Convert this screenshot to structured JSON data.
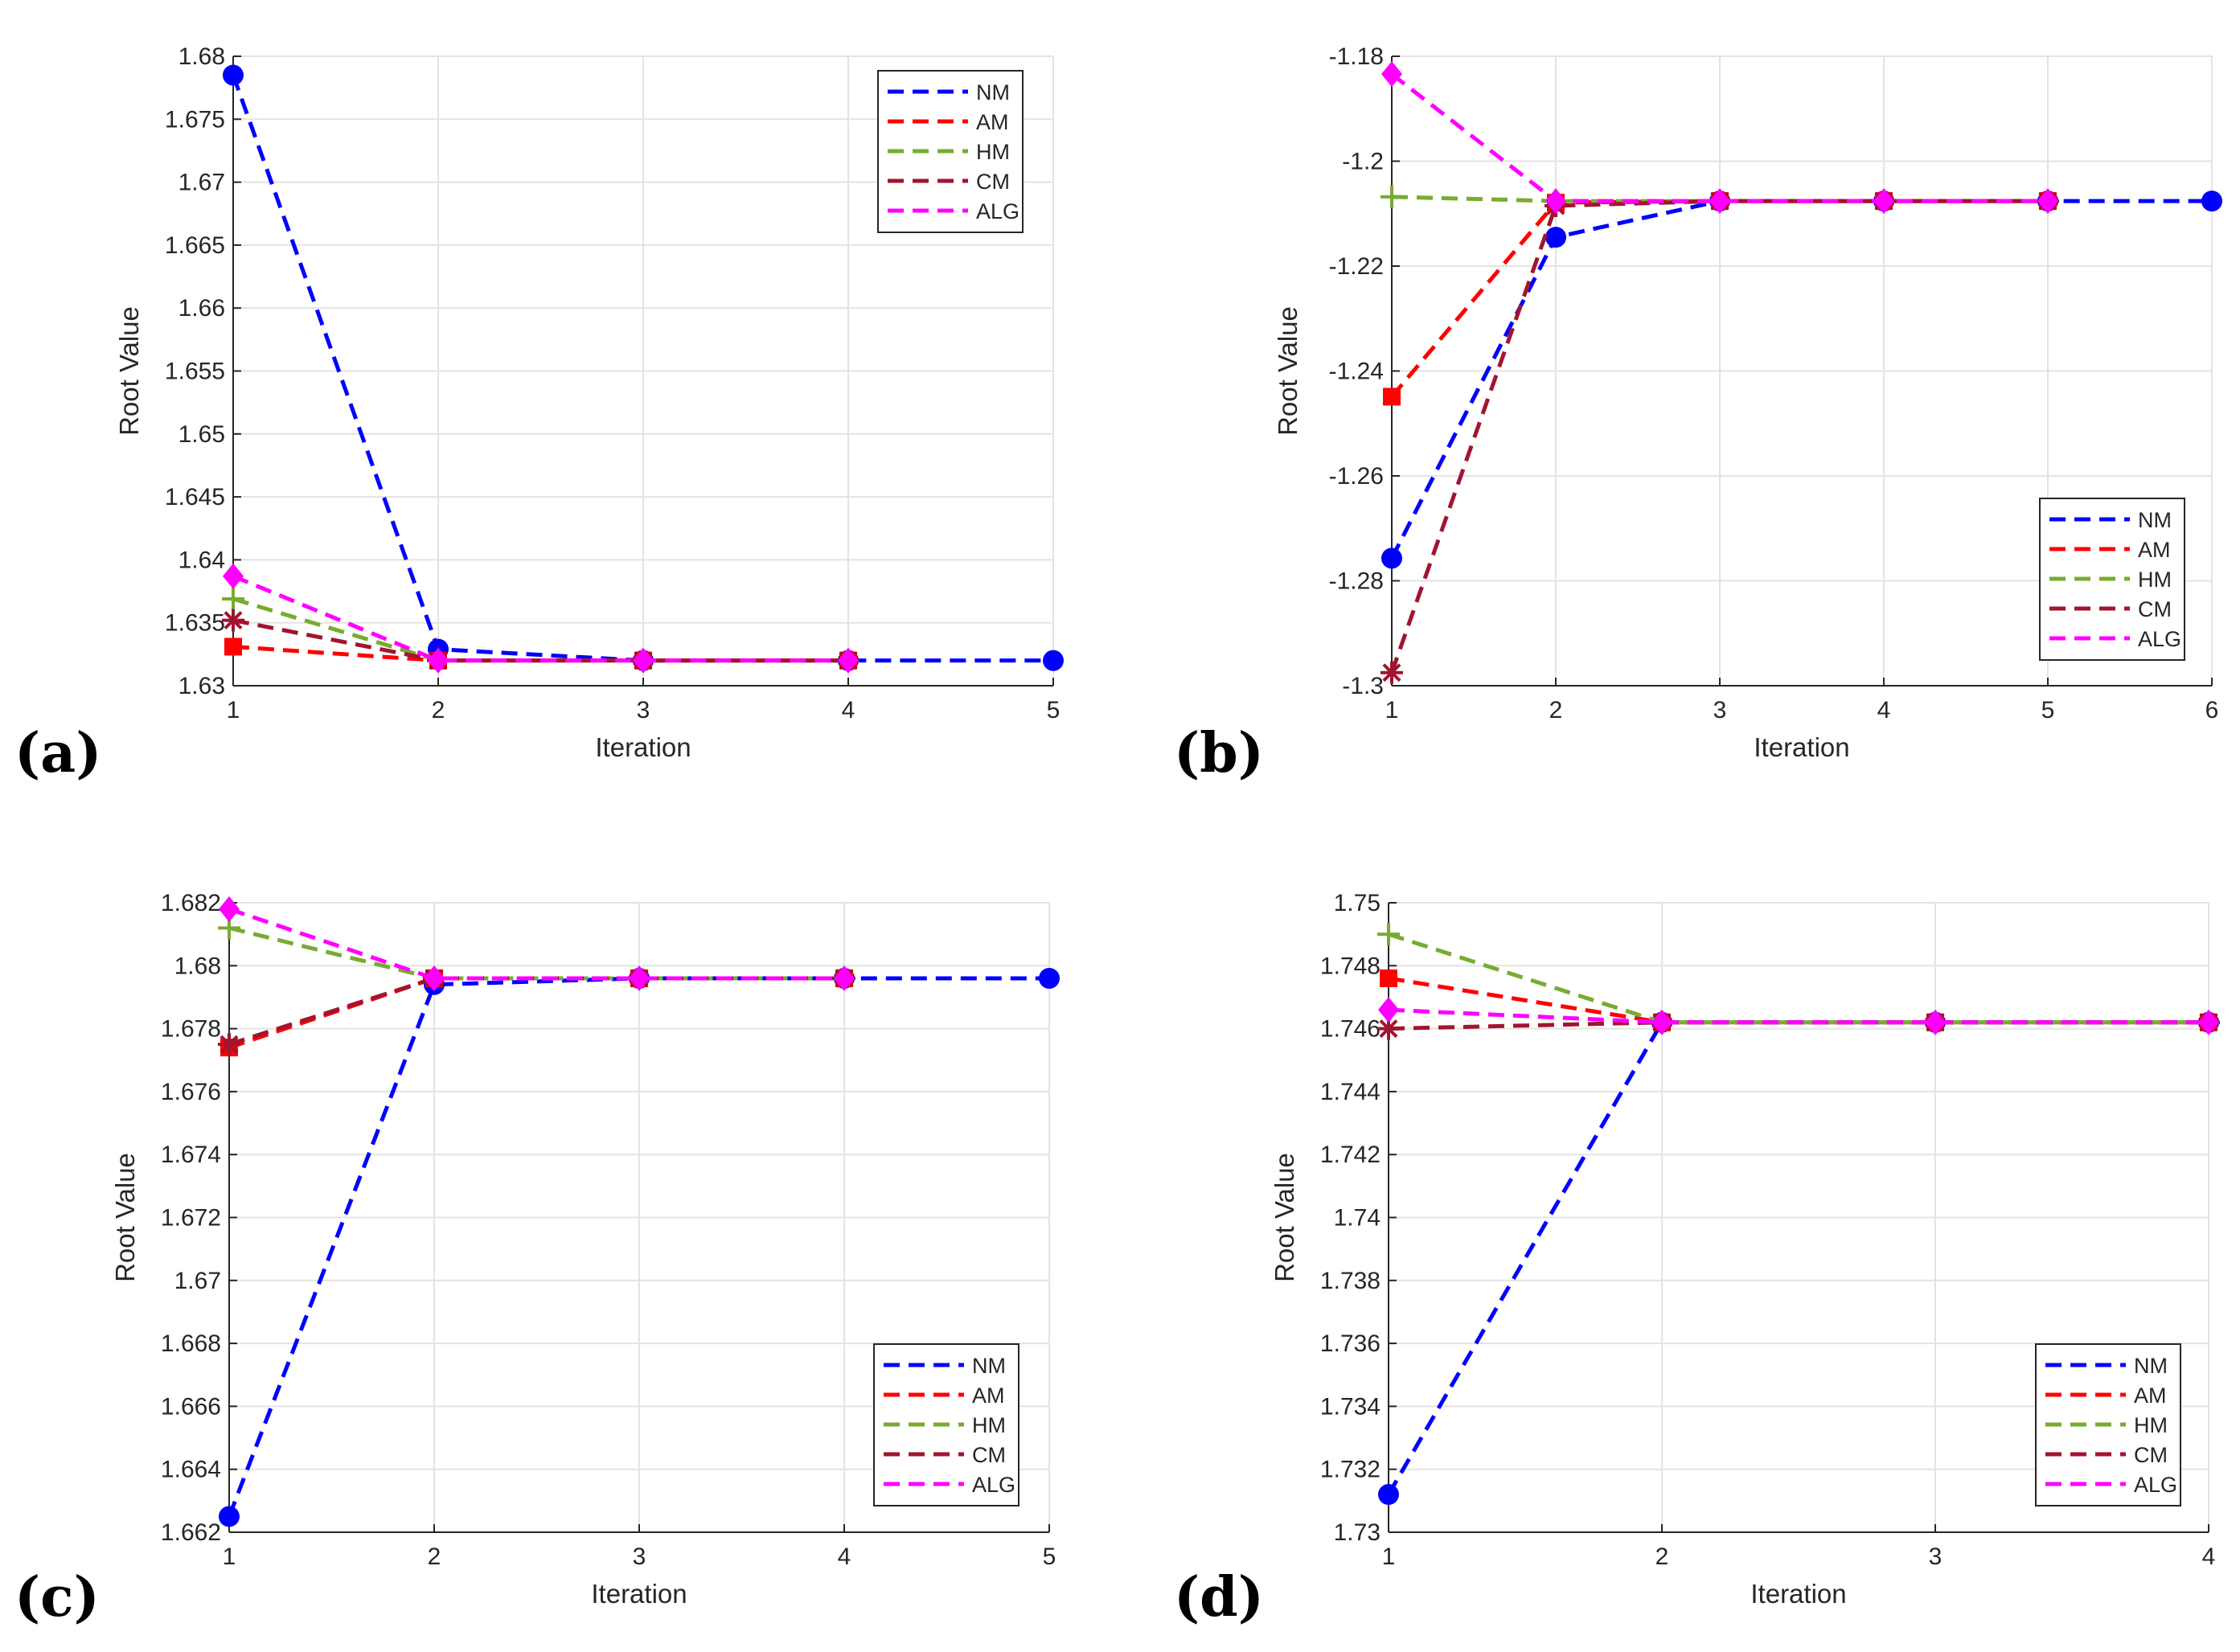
{
  "chart_data": [
    {
      "id": "a",
      "panel_label": "(a)",
      "type": "line",
      "xlabel": "Iteration",
      "ylabel": "Root Value",
      "xlim": [
        1,
        5
      ],
      "ylim": [
        1.63,
        1.68
      ],
      "xticks": [
        1,
        2,
        3,
        4,
        5
      ],
      "xtick_labels": [
        "1",
        "2",
        "3",
        "4",
        "5"
      ],
      "yticks": [
        1.63,
        1.635,
        1.64,
        1.645,
        1.65,
        1.655,
        1.66,
        1.665,
        1.67,
        1.675,
        1.68
      ],
      "ytick_labels": [
        "1.63",
        "1.635",
        "1.64",
        "1.645",
        "1.65",
        "1.655",
        "1.66",
        "1.665",
        "1.67",
        "1.675",
        "1.68"
      ],
      "grid": true,
      "legend_position": "top-right",
      "series": [
        {
          "name": "NM",
          "x": [
            1,
            2,
            3,
            4,
            5
          ],
          "values": [
            1.6785,
            1.6329,
            1.632,
            1.632,
            1.632
          ]
        },
        {
          "name": "AM",
          "x": [
            1,
            2,
            3,
            4
          ],
          "values": [
            1.6331,
            1.632,
            1.632,
            1.632
          ]
        },
        {
          "name": "HM",
          "x": [
            1,
            2,
            3,
            4
          ],
          "values": [
            1.6369,
            1.632,
            1.632,
            1.632
          ]
        },
        {
          "name": "CM",
          "x": [
            1,
            2,
            3,
            4
          ],
          "values": [
            1.6352,
            1.632,
            1.632,
            1.632
          ]
        },
        {
          "name": "ALG",
          "x": [
            1,
            2,
            3,
            4
          ],
          "values": [
            1.6387,
            1.632,
            1.632,
            1.632
          ]
        }
      ]
    },
    {
      "id": "b",
      "panel_label": "(b)",
      "type": "line",
      "xlabel": "Iteration",
      "ylabel": "Root Value",
      "xlim": [
        1,
        6
      ],
      "ylim": [
        -1.3,
        -1.18
      ],
      "xticks": [
        1,
        2,
        3,
        4,
        5,
        6
      ],
      "xtick_labels": [
        "1",
        "2",
        "3",
        "4",
        "5",
        "6"
      ],
      "yticks": [
        -1.3,
        -1.28,
        -1.26,
        -1.24,
        -1.22,
        -1.2,
        -1.18
      ],
      "ytick_labels": [
        "-1.3",
        "-1.28",
        "-1.26",
        "-1.24",
        "-1.22",
        "-1.2",
        "-1.18"
      ],
      "grid": true,
      "legend_position": "bottom-right",
      "series": [
        {
          "name": "NM",
          "x": [
            1,
            2,
            3,
            4,
            5,
            6
          ],
          "values": [
            -1.2757,
            -1.2145,
            -1.2076,
            -1.2076,
            -1.2076,
            -1.2076
          ]
        },
        {
          "name": "AM",
          "x": [
            1,
            2,
            3,
            4,
            5
          ],
          "values": [
            -1.2449,
            -1.2079,
            -1.2076,
            -1.2076,
            -1.2076
          ]
        },
        {
          "name": "HM",
          "x": [
            1,
            2,
            3,
            4,
            5
          ],
          "values": [
            -1.2068,
            -1.2076,
            -1.2076,
            -1.2076,
            -1.2076
          ]
        },
        {
          "name": "CM",
          "x": [
            1,
            2,
            3,
            4,
            5
          ],
          "values": [
            -1.2975,
            -1.2085,
            -1.2076,
            -1.2076,
            -1.2076
          ]
        },
        {
          "name": "ALG",
          "x": [
            1,
            2,
            3,
            4,
            5
          ],
          "values": [
            -1.1834,
            -1.2076,
            -1.2076,
            -1.2076,
            -1.2076
          ]
        }
      ]
    },
    {
      "id": "c",
      "panel_label": "(c)",
      "type": "line",
      "xlabel": "Iteration",
      "ylabel": "Root Value",
      "xlim": [
        1,
        5
      ],
      "ylim": [
        1.662,
        1.682
      ],
      "xticks": [
        1,
        2,
        3,
        4,
        5
      ],
      "xtick_labels": [
        "1",
        "2",
        "3",
        "4",
        "5"
      ],
      "yticks": [
        1.662,
        1.664,
        1.666,
        1.668,
        1.67,
        1.672,
        1.674,
        1.676,
        1.678,
        1.68,
        1.682
      ],
      "ytick_labels": [
        "1.662",
        "1.664",
        "1.666",
        "1.668",
        "1.67",
        "1.672",
        "1.674",
        "1.676",
        "1.678",
        "1.68",
        "1.682"
      ],
      "grid": true,
      "legend_position": "bottom-right",
      "series": [
        {
          "name": "NM",
          "x": [
            1,
            2,
            3,
            4,
            5
          ],
          "values": [
            1.6625,
            1.6794,
            1.6796,
            1.6796,
            1.6796
          ]
        },
        {
          "name": "AM",
          "x": [
            1,
            2,
            3,
            4
          ],
          "values": [
            1.6774,
            1.6796,
            1.6796,
            1.6796
          ]
        },
        {
          "name": "HM",
          "x": [
            1,
            2,
            3,
            4
          ],
          "values": [
            1.6812,
            1.6796,
            1.6796,
            1.6796
          ]
        },
        {
          "name": "CM",
          "x": [
            1,
            2,
            3,
            4
          ],
          "values": [
            1.6775,
            1.6796,
            1.6796,
            1.6796
          ]
        },
        {
          "name": "ALG",
          "x": [
            1,
            2,
            3,
            4
          ],
          "values": [
            1.6818,
            1.6796,
            1.6796,
            1.6796
          ]
        }
      ]
    },
    {
      "id": "d",
      "panel_label": "(d)",
      "type": "line",
      "xlabel": "Iteration",
      "ylabel": "Root Value",
      "xlim": [
        1,
        4
      ],
      "ylim": [
        1.73,
        1.75
      ],
      "xticks": [
        1,
        2,
        3,
        4
      ],
      "xtick_labels": [
        "1",
        "2",
        "3",
        "4"
      ],
      "yticks": [
        1.73,
        1.732,
        1.734,
        1.736,
        1.738,
        1.74,
        1.742,
        1.744,
        1.746,
        1.748,
        1.75
      ],
      "ytick_labels": [
        "1.73",
        "1.732",
        "1.734",
        "1.736",
        "1.738",
        "1.74",
        "1.742",
        "1.744",
        "1.746",
        "1.748",
        "1.75"
      ],
      "grid": true,
      "legend_position": "bottom-right",
      "series": [
        {
          "name": "NM",
          "x": [
            1,
            2,
            3,
            4
          ],
          "values": [
            1.7312,
            1.7462,
            1.7462,
            1.7462
          ]
        },
        {
          "name": "AM",
          "x": [
            1,
            2,
            3,
            4
          ],
          "values": [
            1.7476,
            1.7462,
            1.7462,
            1.7462
          ]
        },
        {
          "name": "HM",
          "x": [
            1,
            2,
            3,
            4
          ],
          "values": [
            1.749,
            1.7462,
            1.7462,
            1.7462
          ]
        },
        {
          "name": "CM",
          "x": [
            1,
            2,
            3,
            4
          ],
          "values": [
            1.746,
            1.7462,
            1.7462,
            1.7462
          ]
        },
        {
          "name": "ALG",
          "x": [
            1,
            2,
            3,
            4
          ],
          "values": [
            1.7466,
            1.7462,
            1.7462,
            1.7462
          ]
        }
      ]
    }
  ],
  "series_style": {
    "NM": {
      "color": "#0000ff",
      "marker": "circle"
    },
    "AM": {
      "color": "#ff0000",
      "marker": "square"
    },
    "HM": {
      "color": "#77ac30",
      "marker": "plus"
    },
    "CM": {
      "color": "#a2142f",
      "marker": "asterisk"
    },
    "ALG": {
      "color": "#ff00ff",
      "marker": "diamond"
    }
  }
}
